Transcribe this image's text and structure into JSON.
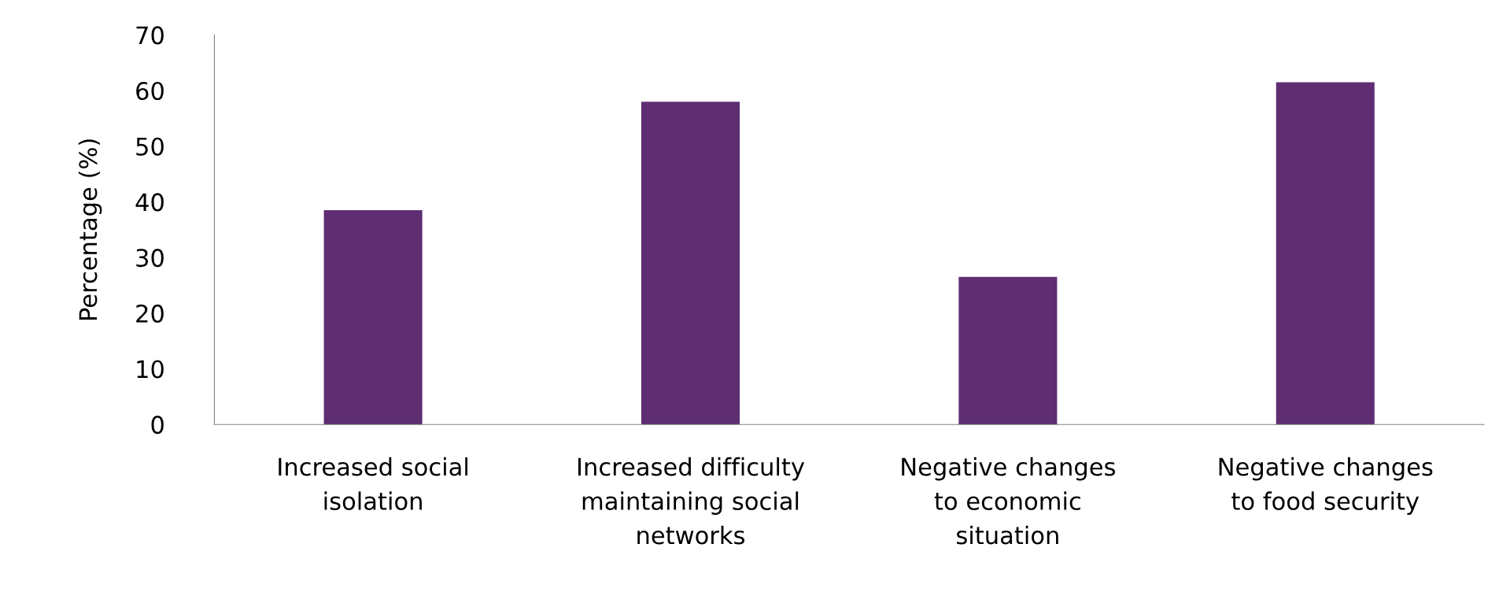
{
  "chart_data": {
    "type": "bar",
    "ylabel": "Percentage (%)",
    "categories": [
      "Increased social\nisolation",
      "Increased difficulty\nmaintaining social\nnetworks",
      "Negative changes\nto economic\nsituation",
      "Negative changes\nto food security"
    ],
    "values": [
      38.5,
      58,
      26.5,
      61.5
    ],
    "color": "#5e2d72",
    "ylim": [
      0,
      70
    ],
    "yticks": [
      0,
      10,
      20,
      30,
      40,
      50,
      60,
      70
    ],
    "grid": false,
    "legend": false
  }
}
